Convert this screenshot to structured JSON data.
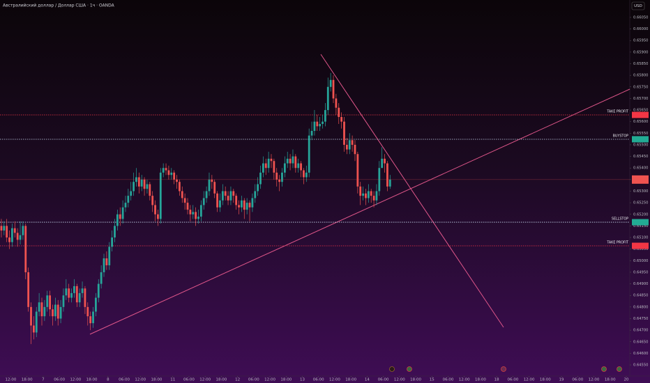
{
  "chart_data": {
    "type": "candlestick",
    "title": "Австралийский доллар / Доллар США · 1ч · OANDA",
    "currency": "USD",
    "up_color": "#26a69a",
    "down_color": "#ef5350",
    "ylim": [
      0.64502,
      0.66125
    ],
    "xlim": [
      -0.5,
      232.8
    ],
    "yticks": [
      {
        "value": 0.6605,
        "label": "0.66050"
      },
      {
        "value": 0.66,
        "label": "0.66000"
      },
      {
        "value": 0.6595,
        "label": "0.65950"
      },
      {
        "value": 0.659,
        "label": "0.65900"
      },
      {
        "value": 0.6585,
        "label": "0.65850"
      },
      {
        "value": 0.658,
        "label": "0.65800"
      },
      {
        "value": 0.6575,
        "label": "0.65750"
      },
      {
        "value": 0.657,
        "label": "0.65700"
      },
      {
        "value": 0.6565,
        "label": "0.65650"
      },
      {
        "value": 0.656,
        "label": "0.65600"
      },
      {
        "value": 0.6555,
        "label": "0.65550"
      },
      {
        "value": 0.655,
        "label": "0.65500"
      },
      {
        "value": 0.6545,
        "label": "0.65450"
      },
      {
        "value": 0.654,
        "label": "0.65400"
      },
      {
        "value": 0.6535,
        "label": "0.65350"
      },
      {
        "value": 0.653,
        "label": "0.65300"
      },
      {
        "value": 0.6525,
        "label": "0.65250"
      },
      {
        "value": 0.652,
        "label": "0.65200"
      },
      {
        "value": 0.6515,
        "label": "0.65150"
      },
      {
        "value": 0.651,
        "label": "0.65100"
      },
      {
        "value": 0.6505,
        "label": "0.65050"
      },
      {
        "value": 0.65,
        "label": "0.65000"
      },
      {
        "value": 0.6495,
        "label": "0.64950"
      },
      {
        "value": 0.649,
        "label": "0.64900"
      },
      {
        "value": 0.6485,
        "label": "0.64850"
      },
      {
        "value": 0.648,
        "label": "0.64800"
      },
      {
        "value": 0.6475,
        "label": "0.64750"
      },
      {
        "value": 0.647,
        "label": "0.64700"
      },
      {
        "value": 0.6465,
        "label": "0.64650"
      },
      {
        "value": 0.646,
        "label": "0.64600"
      },
      {
        "value": 0.6455,
        "label": "0.64550"
      }
    ],
    "xticks": [
      {
        "value": 3.5,
        "label": "12:00"
      },
      {
        "value": 9.5,
        "label": "18:00"
      },
      {
        "value": 15.5,
        "label": "7"
      },
      {
        "value": 21.5,
        "label": "06:00"
      },
      {
        "value": 27.5,
        "label": "12:00"
      },
      {
        "value": 33.5,
        "label": "18:00"
      },
      {
        "value": 39.5,
        "label": "8"
      },
      {
        "value": 45.5,
        "label": "06:00"
      },
      {
        "value": 51.5,
        "label": "12:00"
      },
      {
        "value": 57.5,
        "label": "18:00"
      },
      {
        "value": 63.5,
        "label": "11"
      },
      {
        "value": 69.5,
        "label": "06:00"
      },
      {
        "value": 75.5,
        "label": "12:00"
      },
      {
        "value": 81.5,
        "label": "18:00"
      },
      {
        "value": 87.5,
        "label": "12"
      },
      {
        "value": 93.5,
        "label": "06:00"
      },
      {
        "value": 99.5,
        "label": "12:00"
      },
      {
        "value": 105.5,
        "label": "18:00"
      },
      {
        "value": 111.5,
        "label": "13"
      },
      {
        "value": 117.5,
        "label": "06:00"
      },
      {
        "value": 123.5,
        "label": "12:00"
      },
      {
        "value": 129.5,
        "label": "18:00"
      },
      {
        "value": 135.5,
        "label": "14"
      },
      {
        "value": 141.5,
        "label": "06:00"
      },
      {
        "value": 147.5,
        "label": "12:00"
      },
      {
        "value": 153.5,
        "label": "18:00"
      },
      {
        "value": 159.5,
        "label": "15"
      },
      {
        "value": 165.5,
        "label": "06:00"
      },
      {
        "value": 171.5,
        "label": "12:00"
      },
      {
        "value": 177.5,
        "label": "18:00"
      },
      {
        "value": 183.5,
        "label": "18"
      },
      {
        "value": 189.5,
        "label": "06:00"
      },
      {
        "value": 195.5,
        "label": "12:00"
      },
      {
        "value": 201.5,
        "label": "18:00"
      },
      {
        "value": 207.5,
        "label": "19"
      },
      {
        "value": 213.5,
        "label": "06:00"
      },
      {
        "value": 219.5,
        "label": "12:00"
      },
      {
        "value": 225.5,
        "label": "18:00"
      },
      {
        "value": 231.5,
        "label": "20"
      }
    ],
    "levels": [
      {
        "label": "TAKE PROFIT",
        "value": 0.65629,
        "color": "#f23645"
      },
      {
        "label": "BUYSTOP",
        "value": 0.65524,
        "color": "#22ab94"
      },
      {
        "label": "SELLSTOP",
        "value": 0.65166,
        "color": "#22ab94"
      },
      {
        "label": "TAKE PROFIT",
        "value": 0.65064,
        "color": "#f23645"
      }
    ],
    "candles": [
      [
        0.6515,
        0.6518,
        0.651,
        0.6513
      ],
      [
        0.6513,
        0.6517,
        0.6511,
        0.6515
      ],
      [
        0.6515,
        0.6518,
        0.6508,
        0.651
      ],
      [
        0.651,
        0.6513,
        0.6505,
        0.6508
      ],
      [
        0.6508,
        0.6516,
        0.6506,
        0.6514
      ],
      [
        0.6514,
        0.6517,
        0.651,
        0.6512
      ],
      [
        0.6512,
        0.6514,
        0.6506,
        0.6509
      ],
      [
        0.6509,
        0.6517,
        0.6507,
        0.6511
      ],
      [
        0.6511,
        0.6517,
        0.6509,
        0.6515
      ],
      [
        0.6515,
        0.6516,
        0.6492,
        0.6495
      ],
      [
        0.6495,
        0.6497,
        0.6478,
        0.648
      ],
      [
        0.648,
        0.6482,
        0.6464,
        0.6472
      ],
      [
        0.6472,
        0.6476,
        0.6466,
        0.6469
      ],
      [
        0.6469,
        0.648,
        0.6467,
        0.6478
      ],
      [
        0.6478,
        0.6486,
        0.6476,
        0.6482
      ],
      [
        0.6482,
        0.6484,
        0.6472,
        0.6476
      ],
      [
        0.6476,
        0.6483,
        0.6474,
        0.648
      ],
      [
        0.648,
        0.6487,
        0.6478,
        0.6485
      ],
      [
        0.6485,
        0.6487,
        0.6476,
        0.6479
      ],
      [
        0.6479,
        0.6481,
        0.6472,
        0.6476
      ],
      [
        0.6476,
        0.6484,
        0.6474,
        0.6481
      ],
      [
        0.6481,
        0.6483,
        0.6472,
        0.6475
      ],
      [
        0.6475,
        0.6483,
        0.6473,
        0.648
      ],
      [
        0.648,
        0.6488,
        0.6478,
        0.6485
      ],
      [
        0.6485,
        0.6492,
        0.6483,
        0.6488
      ],
      [
        0.6488,
        0.649,
        0.6482,
        0.6484
      ],
      [
        0.6484,
        0.6488,
        0.6482,
        0.6486
      ],
      [
        0.6486,
        0.6492,
        0.6484,
        0.6489
      ],
      [
        0.6489,
        0.649,
        0.648,
        0.6482
      ],
      [
        0.6482,
        0.6488,
        0.648,
        0.6486
      ],
      [
        0.6486,
        0.6491,
        0.6484,
        0.6488
      ],
      [
        0.6488,
        0.6489,
        0.6477,
        0.648
      ],
      [
        0.648,
        0.6482,
        0.6472,
        0.6476
      ],
      [
        0.6476,
        0.6478,
        0.647,
        0.6473
      ],
      [
        0.6473,
        0.648,
        0.6471,
        0.6478
      ],
      [
        0.6478,
        0.6486,
        0.6476,
        0.6484
      ],
      [
        0.6484,
        0.6492,
        0.6482,
        0.649
      ],
      [
        0.649,
        0.6498,
        0.6488,
        0.6495
      ],
      [
        0.6495,
        0.6503,
        0.6493,
        0.6501
      ],
      [
        0.6501,
        0.6504,
        0.6496,
        0.6498
      ],
      [
        0.6498,
        0.6508,
        0.6496,
        0.6506
      ],
      [
        0.6506,
        0.6513,
        0.6504,
        0.651
      ],
      [
        0.651,
        0.6518,
        0.6508,
        0.6515
      ],
      [
        0.6515,
        0.6522,
        0.6513,
        0.652
      ],
      [
        0.652,
        0.6523,
        0.6515,
        0.6518
      ],
      [
        0.6518,
        0.6526,
        0.6516,
        0.6523
      ],
      [
        0.6523,
        0.6528,
        0.6521,
        0.6525
      ],
      [
        0.6525,
        0.6531,
        0.6523,
        0.6528
      ],
      [
        0.6528,
        0.6534,
        0.6526,
        0.653
      ],
      [
        0.653,
        0.6538,
        0.6528,
        0.6534
      ],
      [
        0.6534,
        0.654,
        0.6532,
        0.6536
      ],
      [
        0.6536,
        0.6538,
        0.6529,
        0.6532
      ],
      [
        0.6532,
        0.6537,
        0.653,
        0.6535
      ],
      [
        0.6535,
        0.6536,
        0.6528,
        0.6531
      ],
      [
        0.6531,
        0.6535,
        0.6529,
        0.6533
      ],
      [
        0.6533,
        0.6534,
        0.6526,
        0.6528
      ],
      [
        0.6528,
        0.653,
        0.6521,
        0.6524
      ],
      [
        0.6524,
        0.6526,
        0.6517,
        0.652
      ],
      [
        0.652,
        0.6522,
        0.6515,
        0.6518
      ],
      [
        0.6518,
        0.654,
        0.6516,
        0.6538
      ],
      [
        0.6538,
        0.6542,
        0.6536,
        0.654
      ],
      [
        0.654,
        0.6542,
        0.6537,
        0.6539
      ],
      [
        0.6539,
        0.6541,
        0.6535,
        0.6537
      ],
      [
        0.6537,
        0.654,
        0.6535,
        0.6538
      ],
      [
        0.6538,
        0.6539,
        0.6533,
        0.6535
      ],
      [
        0.6535,
        0.6537,
        0.6531,
        0.6534
      ],
      [
        0.6534,
        0.6535,
        0.6528,
        0.653
      ],
      [
        0.653,
        0.6532,
        0.6525,
        0.6527
      ],
      [
        0.6527,
        0.6529,
        0.6522,
        0.6525
      ],
      [
        0.6525,
        0.6527,
        0.652,
        0.6522
      ],
      [
        0.6522,
        0.6524,
        0.6517,
        0.652
      ],
      [
        0.652,
        0.6524,
        0.6518,
        0.6521
      ],
      [
        0.6521,
        0.6523,
        0.6515,
        0.6518
      ],
      [
        0.6518,
        0.6522,
        0.6516,
        0.6519
      ],
      [
        0.6519,
        0.6526,
        0.6517,
        0.6524
      ],
      [
        0.6524,
        0.653,
        0.6522,
        0.6527
      ],
      [
        0.6527,
        0.6532,
        0.6525,
        0.653
      ],
      [
        0.653,
        0.6538,
        0.6528,
        0.6535
      ],
      [
        0.6535,
        0.6537,
        0.6531,
        0.6534
      ],
      [
        0.6534,
        0.6535,
        0.6527,
        0.6529
      ],
      [
        0.6529,
        0.653,
        0.6521,
        0.6523
      ],
      [
        0.6523,
        0.6529,
        0.6521,
        0.6526
      ],
      [
        0.6526,
        0.6533,
        0.6524,
        0.653
      ],
      [
        0.653,
        0.6532,
        0.6526,
        0.6528
      ],
      [
        0.6528,
        0.653,
        0.6524,
        0.6526
      ],
      [
        0.6526,
        0.6532,
        0.6524,
        0.653
      ],
      [
        0.653,
        0.6531,
        0.6525,
        0.6528
      ],
      [
        0.6528,
        0.6529,
        0.6522,
        0.6524
      ],
      [
        0.6524,
        0.6526,
        0.652,
        0.6523
      ],
      [
        0.6523,
        0.6528,
        0.6521,
        0.6526
      ],
      [
        0.6526,
        0.6527,
        0.6518,
        0.6522
      ],
      [
        0.6522,
        0.6527,
        0.652,
        0.6525
      ],
      [
        0.6525,
        0.6526,
        0.6517,
        0.6523
      ],
      [
        0.6523,
        0.6529,
        0.6521,
        0.6527
      ],
      [
        0.6527,
        0.6533,
        0.6525,
        0.653
      ],
      [
        0.653,
        0.6536,
        0.6528,
        0.6533
      ],
      [
        0.6533,
        0.6541,
        0.6531,
        0.6538
      ],
      [
        0.6538,
        0.6545,
        0.6536,
        0.6542
      ],
      [
        0.6542,
        0.6544,
        0.6537,
        0.654
      ],
      [
        0.654,
        0.6547,
        0.6538,
        0.6544
      ],
      [
        0.6544,
        0.6546,
        0.654,
        0.6543
      ],
      [
        0.6543,
        0.6544,
        0.6535,
        0.6538
      ],
      [
        0.6538,
        0.654,
        0.6532,
        0.6535
      ],
      [
        0.6535,
        0.6537,
        0.653,
        0.6534
      ],
      [
        0.6534,
        0.654,
        0.6532,
        0.6538
      ],
      [
        0.6538,
        0.6545,
        0.6536,
        0.6542
      ],
      [
        0.6542,
        0.6547,
        0.654,
        0.6544
      ],
      [
        0.6544,
        0.6546,
        0.6539,
        0.6542
      ],
      [
        0.6542,
        0.6548,
        0.654,
        0.6545
      ],
      [
        0.6545,
        0.6546,
        0.6538,
        0.654
      ],
      [
        0.654,
        0.6544,
        0.6538,
        0.6542
      ],
      [
        0.6542,
        0.6543,
        0.6536,
        0.6539
      ],
      [
        0.6539,
        0.654,
        0.6533,
        0.6536
      ],
      [
        0.6536,
        0.6541,
        0.6534,
        0.6538
      ],
      [
        0.6538,
        0.6557,
        0.6536,
        0.6554
      ],
      [
        0.6554,
        0.656,
        0.6552,
        0.6556
      ],
      [
        0.6556,
        0.6565,
        0.6554,
        0.656
      ],
      [
        0.656,
        0.6563,
        0.6556,
        0.6558
      ],
      [
        0.6558,
        0.6562,
        0.6556,
        0.6559
      ],
      [
        0.6559,
        0.6563,
        0.6557,
        0.656
      ],
      [
        0.656,
        0.6568,
        0.6558,
        0.6565
      ],
      [
        0.6565,
        0.6579,
        0.6563,
        0.6575
      ],
      [
        0.6575,
        0.6581,
        0.6573,
        0.6578
      ],
      [
        0.6578,
        0.658,
        0.6568,
        0.657
      ],
      [
        0.657,
        0.6572,
        0.6563,
        0.6566
      ],
      [
        0.6566,
        0.6568,
        0.6559,
        0.6562
      ],
      [
        0.6562,
        0.6564,
        0.6557,
        0.656
      ],
      [
        0.656,
        0.6562,
        0.6547,
        0.655
      ],
      [
        0.655,
        0.6553,
        0.6546,
        0.6548
      ],
      [
        0.6548,
        0.6555,
        0.6546,
        0.6552
      ],
      [
        0.6552,
        0.6554,
        0.6547,
        0.655
      ],
      [
        0.655,
        0.6552,
        0.6543,
        0.6546
      ],
      [
        0.6546,
        0.6547,
        0.6529,
        0.6532
      ],
      [
        0.6532,
        0.6534,
        0.6524,
        0.6528
      ],
      [
        0.6528,
        0.6532,
        0.6526,
        0.6529
      ],
      [
        0.6529,
        0.6531,
        0.6524,
        0.6527
      ],
      [
        0.6527,
        0.6533,
        0.6525,
        0.653
      ],
      [
        0.653,
        0.6531,
        0.6525,
        0.6528
      ],
      [
        0.6528,
        0.653,
        0.6523,
        0.6526
      ],
      [
        0.6526,
        0.6533,
        0.6524,
        0.653
      ],
      [
        0.653,
        0.6543,
        0.6528,
        0.654
      ],
      [
        0.654,
        0.6549,
        0.6541,
        0.6544
      ],
      [
        0.6544,
        0.6546,
        0.6538,
        0.6542
      ],
      [
        0.6542,
        0.6543,
        0.653,
        0.6532
      ],
      [
        0.6532,
        0.6537,
        0.6531,
        0.6535
      ]
    ]
  }
}
